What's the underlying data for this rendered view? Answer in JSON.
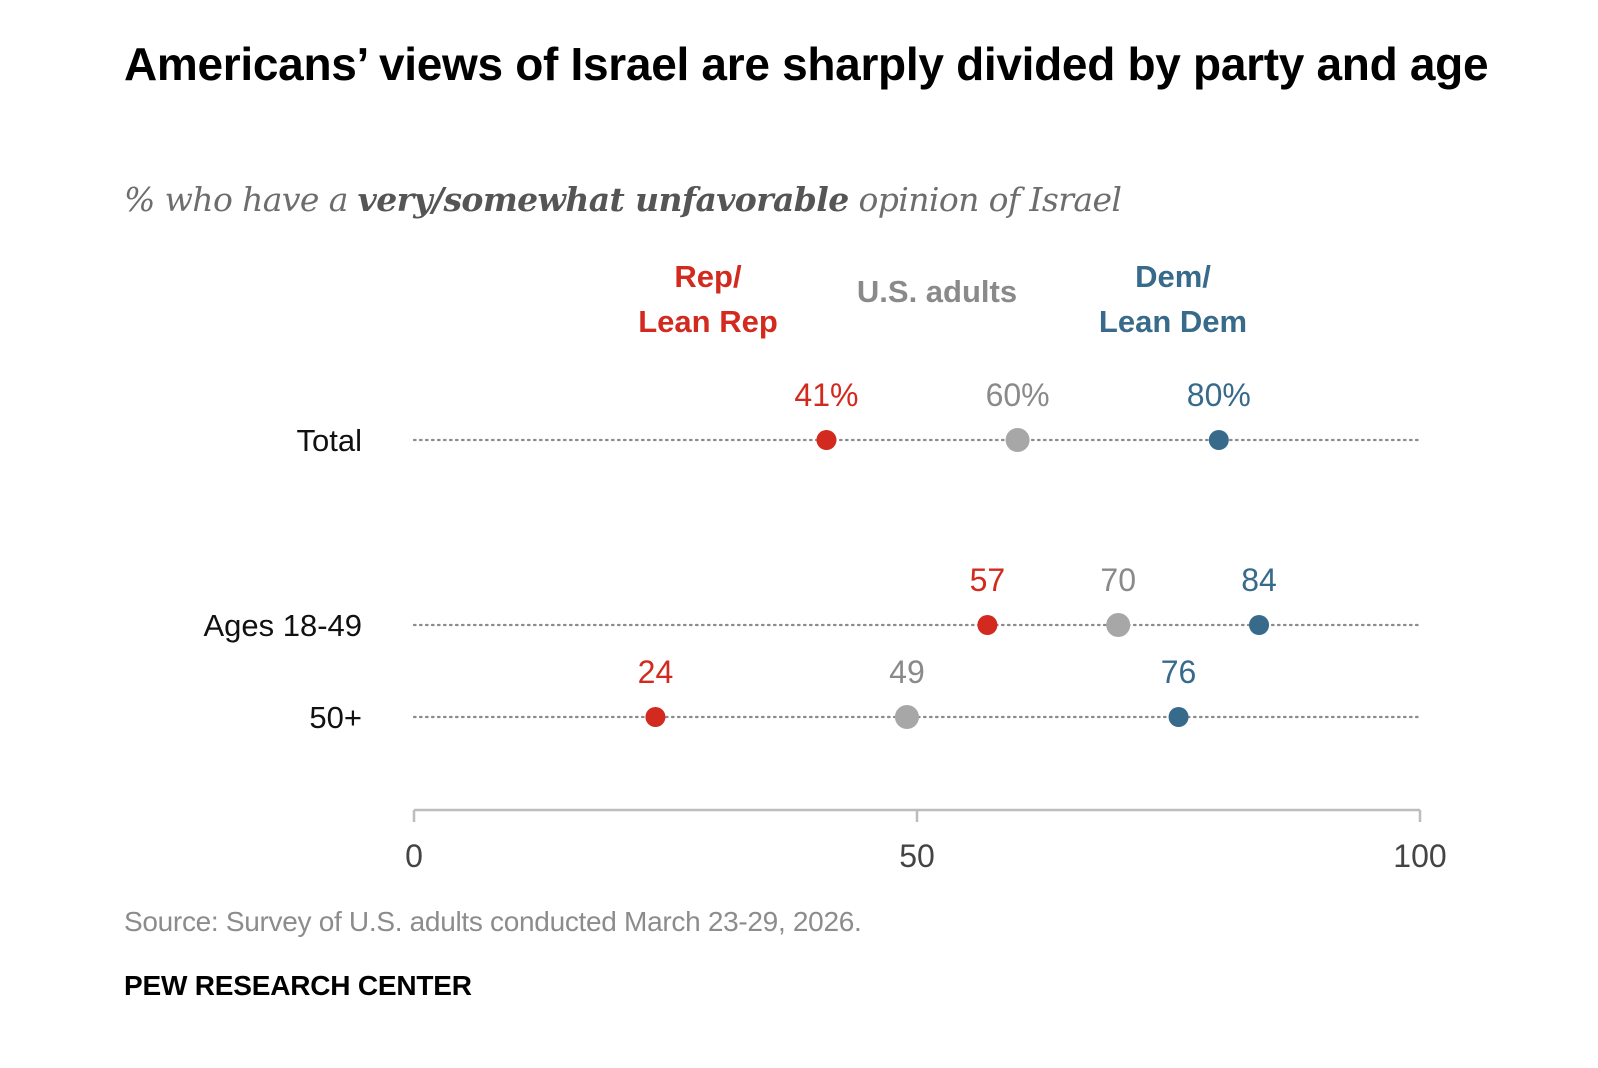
{
  "header": {
    "title": "Americans’ views of Israel are sharply divided by party and age",
    "subtitle_pre": "% who have a ",
    "subtitle_bold": "very/somewhat unfavorable",
    "subtitle_post": " opinion of Israel"
  },
  "footer": {
    "source": "Source: Survey of U.S. adults conducted March 23-29, 2026.",
    "brand": "PEW RESEARCH CENTER"
  },
  "chart_data": {
    "type": "dot",
    "title": "Americans’ views of Israel are sharply divided by party and age",
    "subtitle": "% who have a very/somewhat unfavorable opinion of Israel",
    "categories": [
      "Total",
      "Ages 18-49",
      "50+"
    ],
    "series": [
      {
        "name": "Rep/ Lean Rep",
        "legend_lines": [
          "Rep/",
          "Lean Rep"
        ],
        "color": "#d22a1e",
        "values": [
          41,
          57,
          24
        ],
        "labels": [
          "41%",
          "57",
          "24"
        ]
      },
      {
        "name": "U.S. adults",
        "legend_lines": [
          "U.S. adults"
        ],
        "color": "#a7a7a7",
        "label_color": "#8a8a8a",
        "values": [
          60,
          70,
          49
        ],
        "labels": [
          "60%",
          "70",
          "49"
        ]
      },
      {
        "name": "Dem/ Lean Dem",
        "legend_lines": [
          "Dem/",
          "Lean Dem"
        ],
        "color": "#376a8b",
        "values": [
          80,
          84,
          76
        ],
        "labels": [
          "80%",
          "84",
          "76"
        ]
      }
    ],
    "xlim": [
      0,
      100
    ],
    "xticks": [
      0,
      50,
      100
    ],
    "xtick_labels": [
      "0",
      "50",
      "100"
    ],
    "grid": false,
    "legend_position": "top (inline column headers)"
  }
}
